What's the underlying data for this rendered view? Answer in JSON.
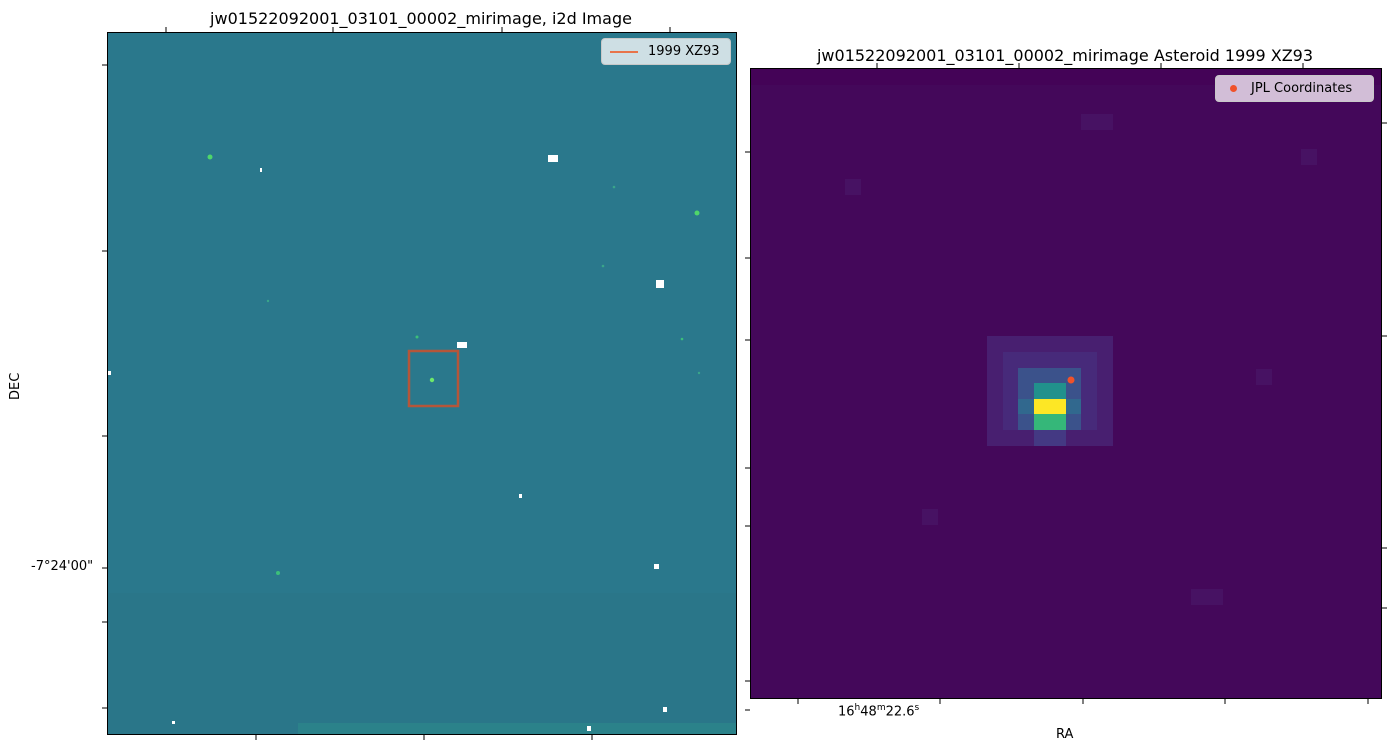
{
  "left_plot": {
    "title": "jw01522092001_03101_00002_mirimage,  i2d Image",
    "ylabel": "DEC",
    "ytick_label": "-7°24'00\"",
    "legend_label": "1999 XZ93",
    "colors": {
      "background": "#2b7a8e",
      "box": "#b5563a",
      "legend_line": "#e8744a"
    }
  },
  "right_plot": {
    "title": "jw01522092001_03101_00002_mirimage Asteroid 1999 XZ93",
    "xlabel": "RA",
    "xtick_label_parts": {
      "h": "16",
      "m": "48",
      "s": "22.6"
    },
    "legend_label": "JPL Coordinates",
    "colors": {
      "background": "#44085a",
      "marker": "#f0522a"
    }
  }
}
